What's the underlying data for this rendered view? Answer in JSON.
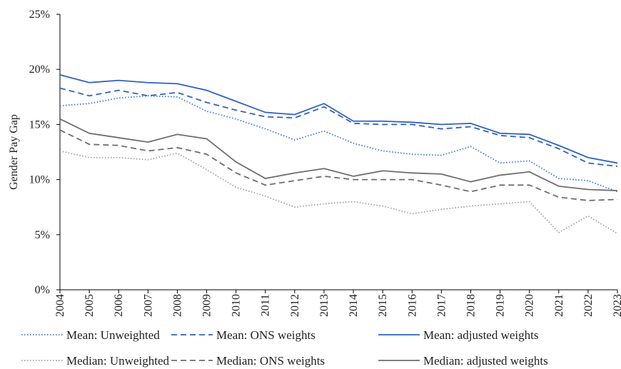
{
  "chart_data": {
    "type": "line",
    "y_label": "Gender Pay Gap",
    "categories": [
      "2004",
      "2005",
      "2006",
      "2007",
      "2008",
      "2009",
      "2010",
      "2011",
      "2012",
      "2013",
      "2014",
      "2015",
      "2016",
      "2017",
      "2018",
      "2019",
      "2020",
      "2021",
      "2022",
      "2023"
    ],
    "ylim": [
      0,
      25
    ],
    "yticks": [
      {
        "value": 0,
        "label": "0%"
      },
      {
        "value": 5,
        "label": "5%"
      },
      {
        "value": 10,
        "label": "10%"
      },
      {
        "value": 15,
        "label": "15%"
      },
      {
        "value": 20,
        "label": "20%"
      },
      {
        "value": 25,
        "label": "25%"
      }
    ],
    "grid": false,
    "legend": "bottom",
    "series": [
      {
        "name": "Mean: Unweighted",
        "color": "#3f78d6",
        "dash": "dotted",
        "values": [
          16.7,
          16.9,
          17.4,
          17.6,
          17.5,
          16.2,
          15.5,
          14.6,
          13.6,
          14.4,
          13.3,
          12.6,
          12.3,
          12.2,
          13.0,
          11.5,
          11.7,
          10.1,
          9.9,
          8.9
        ]
      },
      {
        "name": "Mean: ONS weights",
        "color": "#2f62c4",
        "dash": "dashed",
        "values": [
          18.3,
          17.6,
          18.1,
          17.6,
          17.9,
          17.0,
          16.3,
          15.7,
          15.6,
          16.6,
          15.1,
          15.0,
          15.0,
          14.6,
          14.8,
          14.0,
          13.8,
          12.8,
          11.5,
          11.2
        ]
      },
      {
        "name": "Mean: adjusted weights",
        "color": "#2f62c4",
        "dash": "solid",
        "values": [
          19.5,
          18.8,
          19.0,
          18.8,
          18.7,
          18.1,
          17.1,
          16.1,
          15.9,
          16.9,
          15.3,
          15.3,
          15.2,
          15.0,
          15.1,
          14.2,
          14.1,
          13.1,
          12.0,
          11.5
        ]
      },
      {
        "name": "Median: Unweighted",
        "color": "#a0a0a0",
        "dash": "dotted",
        "values": [
          12.6,
          12.0,
          12.0,
          11.8,
          12.4,
          10.9,
          9.3,
          8.5,
          7.5,
          7.8,
          8.0,
          7.6,
          6.9,
          7.3,
          7.6,
          7.8,
          8.0,
          5.2,
          6.7,
          5.1
        ]
      },
      {
        "name": "Median: ONS weights",
        "color": "#6e6e6e",
        "dash": "dashed",
        "values": [
          14.5,
          13.2,
          13.1,
          12.6,
          12.9,
          12.3,
          10.6,
          9.5,
          9.9,
          10.3,
          10.0,
          10.0,
          10.0,
          9.5,
          8.9,
          9.5,
          9.5,
          8.4,
          8.1,
          8.2
        ]
      },
      {
        "name": "Median: adjusted weights",
        "color": "#6e6e6e",
        "dash": "solid",
        "values": [
          15.5,
          14.2,
          13.8,
          13.4,
          14.1,
          13.7,
          11.6,
          10.1,
          10.6,
          11.0,
          10.3,
          10.8,
          10.6,
          10.5,
          9.8,
          10.4,
          10.7,
          9.4,
          9.1,
          9.0
        ]
      }
    ]
  }
}
